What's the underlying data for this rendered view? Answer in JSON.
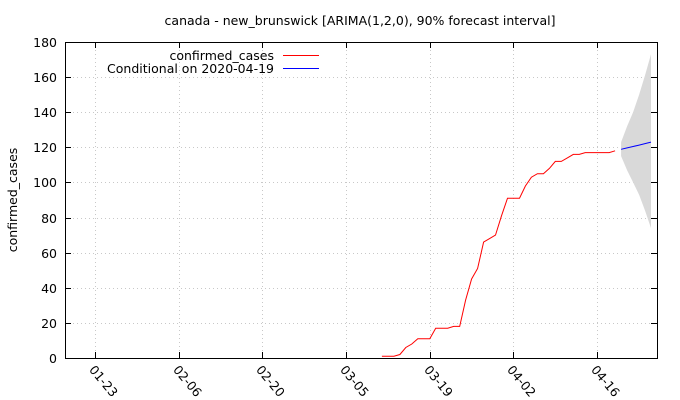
{
  "chart_data": {
    "type": "line",
    "title": "canada - new_brunswick [ARIMA(1,2,0), 90% forecast interval]",
    "xlabel": "",
    "ylabel": "confirmed_cases",
    "x_tick_labels": [
      "01-23",
      "02-06",
      "02-20",
      "03-05",
      "03-19",
      "04-02",
      "04-16"
    ],
    "x_tick_dates": [
      "2020-01-23",
      "2020-02-06",
      "2020-02-20",
      "2020-03-05",
      "2020-03-19",
      "2020-04-02",
      "2020-04-16"
    ],
    "xlim": [
      "2020-01-18",
      "2020-04-26"
    ],
    "y_ticks": [
      0,
      20,
      40,
      60,
      80,
      100,
      120,
      140,
      160,
      180
    ],
    "ylim": [
      0,
      180
    ],
    "grid": true,
    "legend_position": "top-left",
    "series": [
      {
        "name": "confirmed_cases",
        "color": "#ff0000",
        "points": [
          {
            "x": "2020-03-11",
            "y": 1
          },
          {
            "x": "2020-03-12",
            "y": 1
          },
          {
            "x": "2020-03-13",
            "y": 1
          },
          {
            "x": "2020-03-14",
            "y": 2
          },
          {
            "x": "2020-03-15",
            "y": 6
          },
          {
            "x": "2020-03-16",
            "y": 8
          },
          {
            "x": "2020-03-17",
            "y": 11
          },
          {
            "x": "2020-03-18",
            "y": 11
          },
          {
            "x": "2020-03-19",
            "y": 11
          },
          {
            "x": "2020-03-20",
            "y": 17
          },
          {
            "x": "2020-03-21",
            "y": 17
          },
          {
            "x": "2020-03-22",
            "y": 17
          },
          {
            "x": "2020-03-23",
            "y": 18
          },
          {
            "x": "2020-03-24",
            "y": 18
          },
          {
            "x": "2020-03-25",
            "y": 33
          },
          {
            "x": "2020-03-26",
            "y": 45
          },
          {
            "x": "2020-03-27",
            "y": 51
          },
          {
            "x": "2020-03-28",
            "y": 66
          },
          {
            "x": "2020-03-29",
            "y": 68
          },
          {
            "x": "2020-03-30",
            "y": 70
          },
          {
            "x": "2020-03-31",
            "y": 81
          },
          {
            "x": "2020-04-01",
            "y": 91
          },
          {
            "x": "2020-04-02",
            "y": 91
          },
          {
            "x": "2020-04-03",
            "y": 91
          },
          {
            "x": "2020-04-04",
            "y": 98
          },
          {
            "x": "2020-04-05",
            "y": 103
          },
          {
            "x": "2020-04-06",
            "y": 105
          },
          {
            "x": "2020-04-07",
            "y": 105
          },
          {
            "x": "2020-04-08",
            "y": 108
          },
          {
            "x": "2020-04-09",
            "y": 112
          },
          {
            "x": "2020-04-10",
            "y": 112
          },
          {
            "x": "2020-04-11",
            "y": 114
          },
          {
            "x": "2020-04-12",
            "y": 116
          },
          {
            "x": "2020-04-13",
            "y": 116
          },
          {
            "x": "2020-04-14",
            "y": 117
          },
          {
            "x": "2020-04-15",
            "y": 117
          },
          {
            "x": "2020-04-16",
            "y": 117
          },
          {
            "x": "2020-04-17",
            "y": 117
          },
          {
            "x": "2020-04-18",
            "y": 117
          },
          {
            "x": "2020-04-19",
            "y": 118
          }
        ]
      },
      {
        "name": "Conditional on 2020-04-19",
        "color": "#0000ff",
        "points": [
          {
            "x": "2020-04-20",
            "y": 118.9
          },
          {
            "x": "2020-04-21",
            "y": 119.7
          },
          {
            "x": "2020-04-22",
            "y": 120.5
          },
          {
            "x": "2020-04-23",
            "y": 121.3
          },
          {
            "x": "2020-04-24",
            "y": 122.1
          },
          {
            "x": "2020-04-25",
            "y": 123.0
          }
        ]
      }
    ],
    "forecast_interval": {
      "color": "#d9d9d9",
      "points": [
        {
          "x": "2020-04-20",
          "lower": 115,
          "upper": 123
        },
        {
          "x": "2020-04-21",
          "lower": 107,
          "upper": 132
        },
        {
          "x": "2020-04-22",
          "lower": 100,
          "upper": 140
        },
        {
          "x": "2020-04-23",
          "lower": 93,
          "upper": 150
        },
        {
          "x": "2020-04-24",
          "lower": 84,
          "upper": 161
        },
        {
          "x": "2020-04-25",
          "lower": 74,
          "upper": 173
        }
      ]
    }
  }
}
